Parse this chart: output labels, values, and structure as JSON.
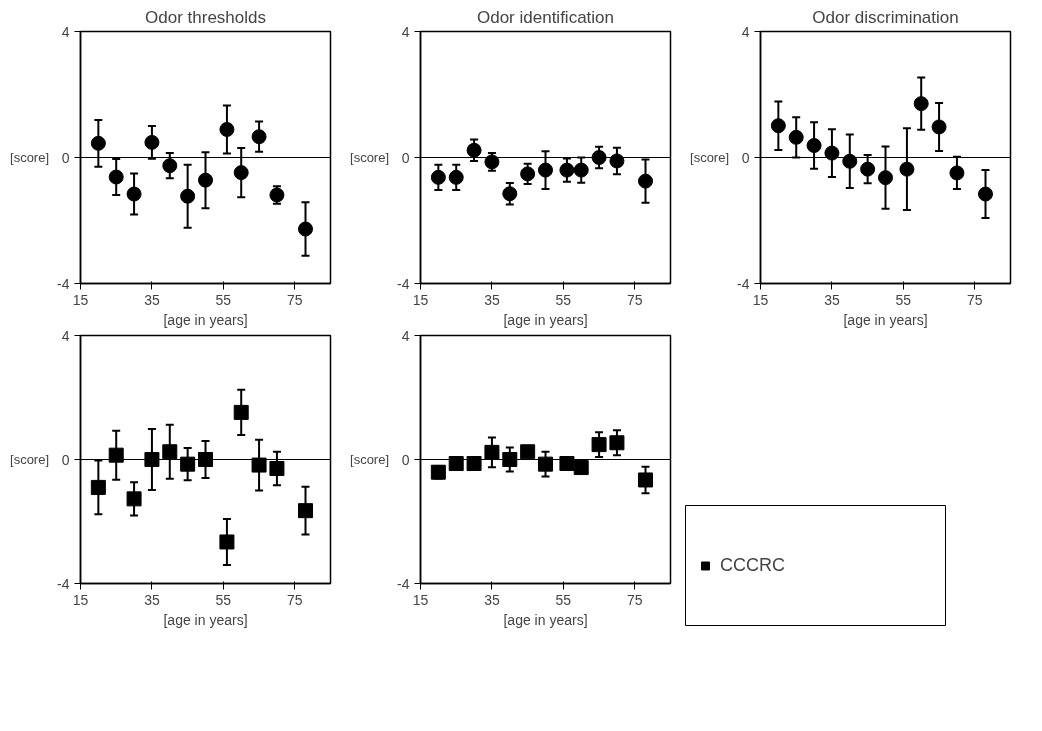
{
  "chart_data": [
    {
      "type": "scatter",
      "title": "Odor thresholds",
      "xlabel": "[age in years]",
      "ylabel": "[score]",
      "marker": "circle",
      "xlim": [
        15,
        85
      ],
      "ylim": [
        -4,
        4
      ],
      "xticks": [
        15,
        35,
        55,
        75
      ],
      "yticks": [
        -4,
        0,
        4
      ],
      "grid": false,
      "ref_lines": [
        {
          "axis": "y",
          "value": 0
        }
      ],
      "series": [
        {
          "color": "#000000",
          "x": [
            20,
            25,
            30,
            35,
            40,
            45,
            50,
            56,
            60,
            65,
            70,
            78
          ],
          "values": [
            0.45,
            -0.62,
            -1.16,
            0.48,
            -0.26,
            -1.23,
            -0.72,
            0.89,
            -0.48,
            0.66,
            -1.19,
            -2.27
          ],
          "errors": [
            0.74,
            0.57,
            0.65,
            0.52,
            0.4,
            1.0,
            0.89,
            0.76,
            0.78,
            0.48,
            0.28,
            0.85
          ]
        }
      ]
    },
    {
      "type": "scatter",
      "title": "Odor identification",
      "xlabel": "[age in years]",
      "ylabel": "[score]",
      "marker": "circle",
      "xlim": [
        15,
        85
      ],
      "ylim": [
        -4,
        4
      ],
      "xticks": [
        15,
        35,
        55,
        75
      ],
      "yticks": [
        -4,
        0,
        4
      ],
      "grid": false,
      "ref_lines": [
        {
          "axis": "y",
          "value": 0
        }
      ],
      "series": [
        {
          "color": "#000000",
          "x": [
            20,
            25,
            30,
            35,
            40,
            45,
            50,
            56,
            60,
            65,
            70,
            78
          ],
          "values": [
            -0.63,
            -0.63,
            0.23,
            -0.14,
            -1.15,
            -0.52,
            -0.4,
            -0.4,
            -0.4,
            0,
            -0.11,
            -0.75
          ],
          "errors": [
            0.4,
            0.4,
            0.34,
            0.28,
            0.34,
            0.32,
            0.6,
            0.37,
            0.4,
            0.34,
            0.42,
            0.69
          ]
        }
      ]
    },
    {
      "type": "scatter",
      "title": "Odor discrimination",
      "xlabel": "[age in years]",
      "ylabel": "[score]",
      "marker": "circle",
      "xlim": [
        15,
        85
      ],
      "ylim": [
        -4,
        4
      ],
      "xticks": [
        15,
        35,
        55,
        75
      ],
      "yticks": [
        -4,
        0,
        4
      ],
      "grid": false,
      "ref_lines": [
        {
          "axis": "y",
          "value": 0
        }
      ],
      "series": [
        {
          "color": "#000000",
          "x": [
            20,
            25,
            30,
            35,
            40,
            45,
            50,
            56,
            60,
            65,
            70,
            78
          ],
          "values": [
            1.01,
            0.64,
            0.38,
            0.14,
            -0.12,
            -0.37,
            -0.64,
            -0.37,
            1.71,
            0.97,
            -0.49,
            -1.16
          ],
          "errors": [
            0.77,
            0.64,
            0.74,
            0.76,
            0.85,
            0.45,
            0.99,
            1.3,
            0.83,
            0.76,
            0.51,
            0.76
          ]
        }
      ]
    },
    {
      "type": "scatter",
      "xlabel": "[age in years]",
      "ylabel": "[score]",
      "marker": "square",
      "xlim": [
        15,
        85
      ],
      "ylim": [
        -4,
        4
      ],
      "xticks": [
        15,
        35,
        55,
        75
      ],
      "yticks": [
        -4,
        0,
        4
      ],
      "grid": false,
      "ref_lines": [
        {
          "axis": "y",
          "value": 0
        }
      ],
      "series": [
        {
          "color": "#000000",
          "x": [
            20,
            25,
            30,
            35,
            40,
            45,
            50,
            56,
            60,
            65,
            70,
            78
          ],
          "values": [
            -0.9,
            0.14,
            -1.27,
            0,
            0.25,
            -0.15,
            0,
            -2.66,
            1.52,
            -0.18,
            -0.29,
            -1.65
          ],
          "errors": [
            0.87,
            0.79,
            0.54,
            0.98,
            0.87,
            0.52,
            0.6,
            0.74,
            0.73,
            0.82,
            0.54,
            0.77
          ]
        }
      ]
    },
    {
      "type": "scatter",
      "xlabel": "[age in years]",
      "ylabel": "[score]",
      "marker": "square",
      "xlim": [
        15,
        85
      ],
      "ylim": [
        -4,
        4
      ],
      "xticks": [
        15,
        35,
        55,
        75
      ],
      "yticks": [
        -4,
        0,
        4
      ],
      "grid": false,
      "legend": "right",
      "ref_lines": [
        {
          "axis": "y",
          "value": 0
        }
      ],
      "series": [
        {
          "name": "CCCRC",
          "color": "#000000",
          "x": [
            20,
            25,
            30,
            35,
            40,
            45,
            50,
            56,
            60,
            65,
            70,
            78
          ],
          "values": [
            -0.41,
            -0.13,
            -0.13,
            0.23,
            0,
            0.25,
            -0.15,
            -0.13,
            -0.26,
            0.48,
            0.54,
            -0.66
          ],
          "errors": [
            0.2,
            0.1,
            0.1,
            0.48,
            0.39,
            0.1,
            0.4,
            0.1,
            0.1,
            0.4,
            0.4,
            0.43
          ]
        }
      ]
    }
  ]
}
